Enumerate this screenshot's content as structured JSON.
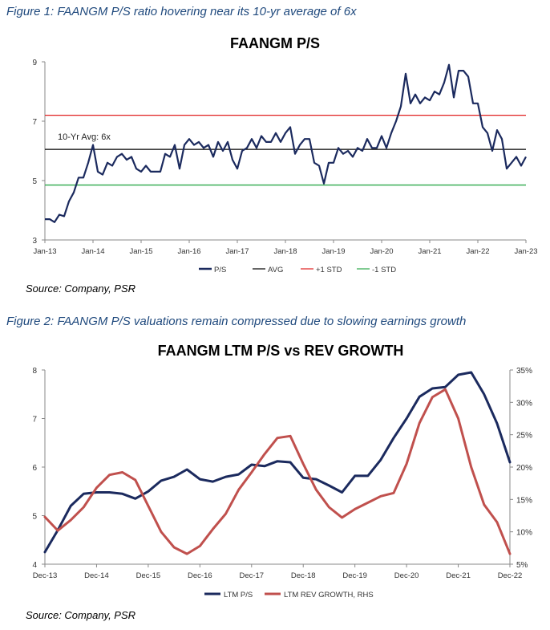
{
  "figure1": {
    "caption": "Figure 1: FAANGM P/S ratio hovering near its 10-yr average of 6x",
    "source": "Source: Company, PSR"
  },
  "figure2": {
    "caption": "Figure 2: FAANGM P/S valuations remain compressed due to slowing earnings growth",
    "source": "Source: Company, PSR"
  },
  "colors": {
    "ps": "#1b2a5e",
    "avg": "#000000",
    "plus_std": "#e02020",
    "minus_std": "#2ca84a",
    "rev": "#c0504d"
  },
  "chart_data": [
    {
      "type": "line",
      "title": "FAANGM P/S",
      "ylim": [
        3,
        9
      ],
      "y_ticks": [
        "3",
        "5",
        "7",
        "9"
      ],
      "x_tick_labels": [
        "Jan-13",
        "Jan-14",
        "Jan-15",
        "Jan-16",
        "Jan-17",
        "Jan-18",
        "Jan-19",
        "Jan-20",
        "Jan-21",
        "Jan-22",
        "Jan-23"
      ],
      "annotation": "10-Yr Avg: 6x",
      "legend_position": "bottom",
      "series": [
        {
          "name": "P/S",
          "color": "#1b2a5e",
          "x": [
            2013.0,
            2013.1,
            2013.2,
            2013.3,
            2013.4,
            2013.5,
            2013.6,
            2013.7,
            2013.8,
            2013.9,
            2014.0,
            2014.1,
            2014.2,
            2014.3,
            2014.4,
            2014.5,
            2014.6,
            2014.7,
            2014.8,
            2014.9,
            2015.0,
            2015.1,
            2015.2,
            2015.3,
            2015.4,
            2015.5,
            2015.6,
            2015.7,
            2015.8,
            2015.9,
            2016.0,
            2016.1,
            2016.2,
            2016.3,
            2016.4,
            2016.5,
            2016.6,
            2016.7,
            2016.8,
            2016.9,
            2017.0,
            2017.1,
            2017.2,
            2017.3,
            2017.4,
            2017.5,
            2017.6,
            2017.7,
            2017.8,
            2017.9,
            2018.0,
            2018.1,
            2018.2,
            2018.3,
            2018.4,
            2018.5,
            2018.6,
            2018.7,
            2018.8,
            2018.9,
            2019.0,
            2019.1,
            2019.2,
            2019.3,
            2019.4,
            2019.5,
            2019.6,
            2019.7,
            2019.8,
            2019.9,
            2020.0,
            2020.1,
            2020.2,
            2020.3,
            2020.4,
            2020.5,
            2020.6,
            2020.7,
            2020.8,
            2020.9,
            2021.0,
            2021.1,
            2021.2,
            2021.3,
            2021.4,
            2021.5,
            2021.6,
            2021.7,
            2021.8,
            2021.9,
            2022.0,
            2022.1,
            2022.2,
            2022.3,
            2022.4,
            2022.5,
            2022.6,
            2022.7,
            2022.8,
            2022.9,
            2023.0
          ],
          "values": [
            3.7,
            3.7,
            3.6,
            3.85,
            3.8,
            4.3,
            4.6,
            5.1,
            5.1,
            5.6,
            6.2,
            5.3,
            5.2,
            5.6,
            5.5,
            5.8,
            5.9,
            5.7,
            5.8,
            5.4,
            5.3,
            5.5,
            5.3,
            5.3,
            5.3,
            5.9,
            5.8,
            6.2,
            5.4,
            6.2,
            6.4,
            6.2,
            6.3,
            6.1,
            6.2,
            5.8,
            6.3,
            6.0,
            6.3,
            5.7,
            5.4,
            6.0,
            6.1,
            6.4,
            6.1,
            6.5,
            6.3,
            6.3,
            6.6,
            6.3,
            6.6,
            6.8,
            5.9,
            6.2,
            6.4,
            6.4,
            5.6,
            5.5,
            4.9,
            5.6,
            5.6,
            6.1,
            5.9,
            6.0,
            5.8,
            6.1,
            6.0,
            6.4,
            6.1,
            6.1,
            6.5,
            6.1,
            6.6,
            7.0,
            7.5,
            8.6,
            7.6,
            7.9,
            7.6,
            7.8,
            7.7,
            8.0,
            7.9,
            8.3,
            8.9,
            7.8,
            8.7,
            8.7,
            8.5,
            7.6,
            7.6,
            6.8,
            6.6,
            6.0,
            6.7,
            6.4,
            5.4,
            5.6,
            5.8,
            5.5,
            5.8
          ]
        },
        {
          "name": "AVG",
          "color": "#000000",
          "values": [
            6.05
          ]
        },
        {
          "name": "+1 STD",
          "color": "#e02020",
          "values": [
            7.2
          ]
        },
        {
          "name": "-1 STD",
          "color": "#2ca84a",
          "values": [
            4.85
          ]
        }
      ]
    },
    {
      "type": "line",
      "title": "FAANGM LTM P/S vs REV GROWTH",
      "ylim": [
        4,
        8
      ],
      "y_ticks": [
        "4",
        "5",
        "6",
        "7",
        "8"
      ],
      "y2lim": [
        5,
        35
      ],
      "y2_ticks": [
        "5%",
        "10%",
        "15%",
        "20%",
        "25%",
        "30%",
        "35%"
      ],
      "x_tick_labels": [
        "Dec-13",
        "Dec-14",
        "Dec-15",
        "Dec-16",
        "Dec-17",
        "Dec-18",
        "Dec-19",
        "Dec-20",
        "Dec-21",
        "Dec-22"
      ],
      "legend_position": "bottom",
      "series": [
        {
          "name": "LTM P/S",
          "color": "#1b2a5e",
          "axis": "left",
          "x": [
            2013.9,
            2014.15,
            2014.4,
            2014.65,
            2014.9,
            2015.15,
            2015.4,
            2015.65,
            2015.9,
            2016.15,
            2016.4,
            2016.65,
            2016.9,
            2017.15,
            2017.4,
            2017.65,
            2017.9,
            2018.15,
            2018.4,
            2018.65,
            2018.9,
            2019.15,
            2019.4,
            2019.65,
            2019.9,
            2020.15,
            2020.4,
            2020.65,
            2020.9,
            2021.15,
            2021.4,
            2021.65,
            2021.9,
            2022.15,
            2022.4,
            2022.65,
            2022.9
          ],
          "values": [
            4.25,
            4.7,
            5.2,
            5.45,
            5.48,
            5.48,
            5.45,
            5.35,
            5.5,
            5.72,
            5.8,
            5.95,
            5.75,
            5.7,
            5.8,
            5.85,
            6.05,
            6.02,
            6.12,
            6.1,
            5.78,
            5.75,
            5.62,
            5.48,
            5.82,
            5.82,
            6.15,
            6.6,
            7.0,
            7.45,
            7.62,
            7.65,
            7.9,
            7.95,
            7.5,
            6.9,
            6.1
          ]
        },
        {
          "name": "LTM REV GROWTH, RHS",
          "color": "#c0504d",
          "axis": "right",
          "x": [
            2013.9,
            2014.15,
            2014.4,
            2014.65,
            2014.9,
            2015.15,
            2015.4,
            2015.65,
            2015.9,
            2016.15,
            2016.4,
            2016.65,
            2016.9,
            2017.15,
            2017.4,
            2017.65,
            2017.9,
            2018.15,
            2018.4,
            2018.65,
            2018.9,
            2019.15,
            2019.4,
            2019.65,
            2019.9,
            2020.15,
            2020.4,
            2020.65,
            2020.9,
            2021.15,
            2021.4,
            2021.65,
            2021.9,
            2022.15,
            2022.4,
            2022.65,
            2022.9
          ],
          "values": [
            12.3,
            10.2,
            11.8,
            13.8,
            16.8,
            18.8,
            19.2,
            18.0,
            14.0,
            10.0,
            7.6,
            6.6,
            7.8,
            10.4,
            12.8,
            16.5,
            19.2,
            22.0,
            24.5,
            24.8,
            20.5,
            16.5,
            13.8,
            12.2,
            13.5,
            14.5,
            15.5,
            16.0,
            20.5,
            26.8,
            30.8,
            32.0,
            27.5,
            20.0,
            14.2,
            11.5,
            6.6
          ]
        }
      ]
    }
  ]
}
